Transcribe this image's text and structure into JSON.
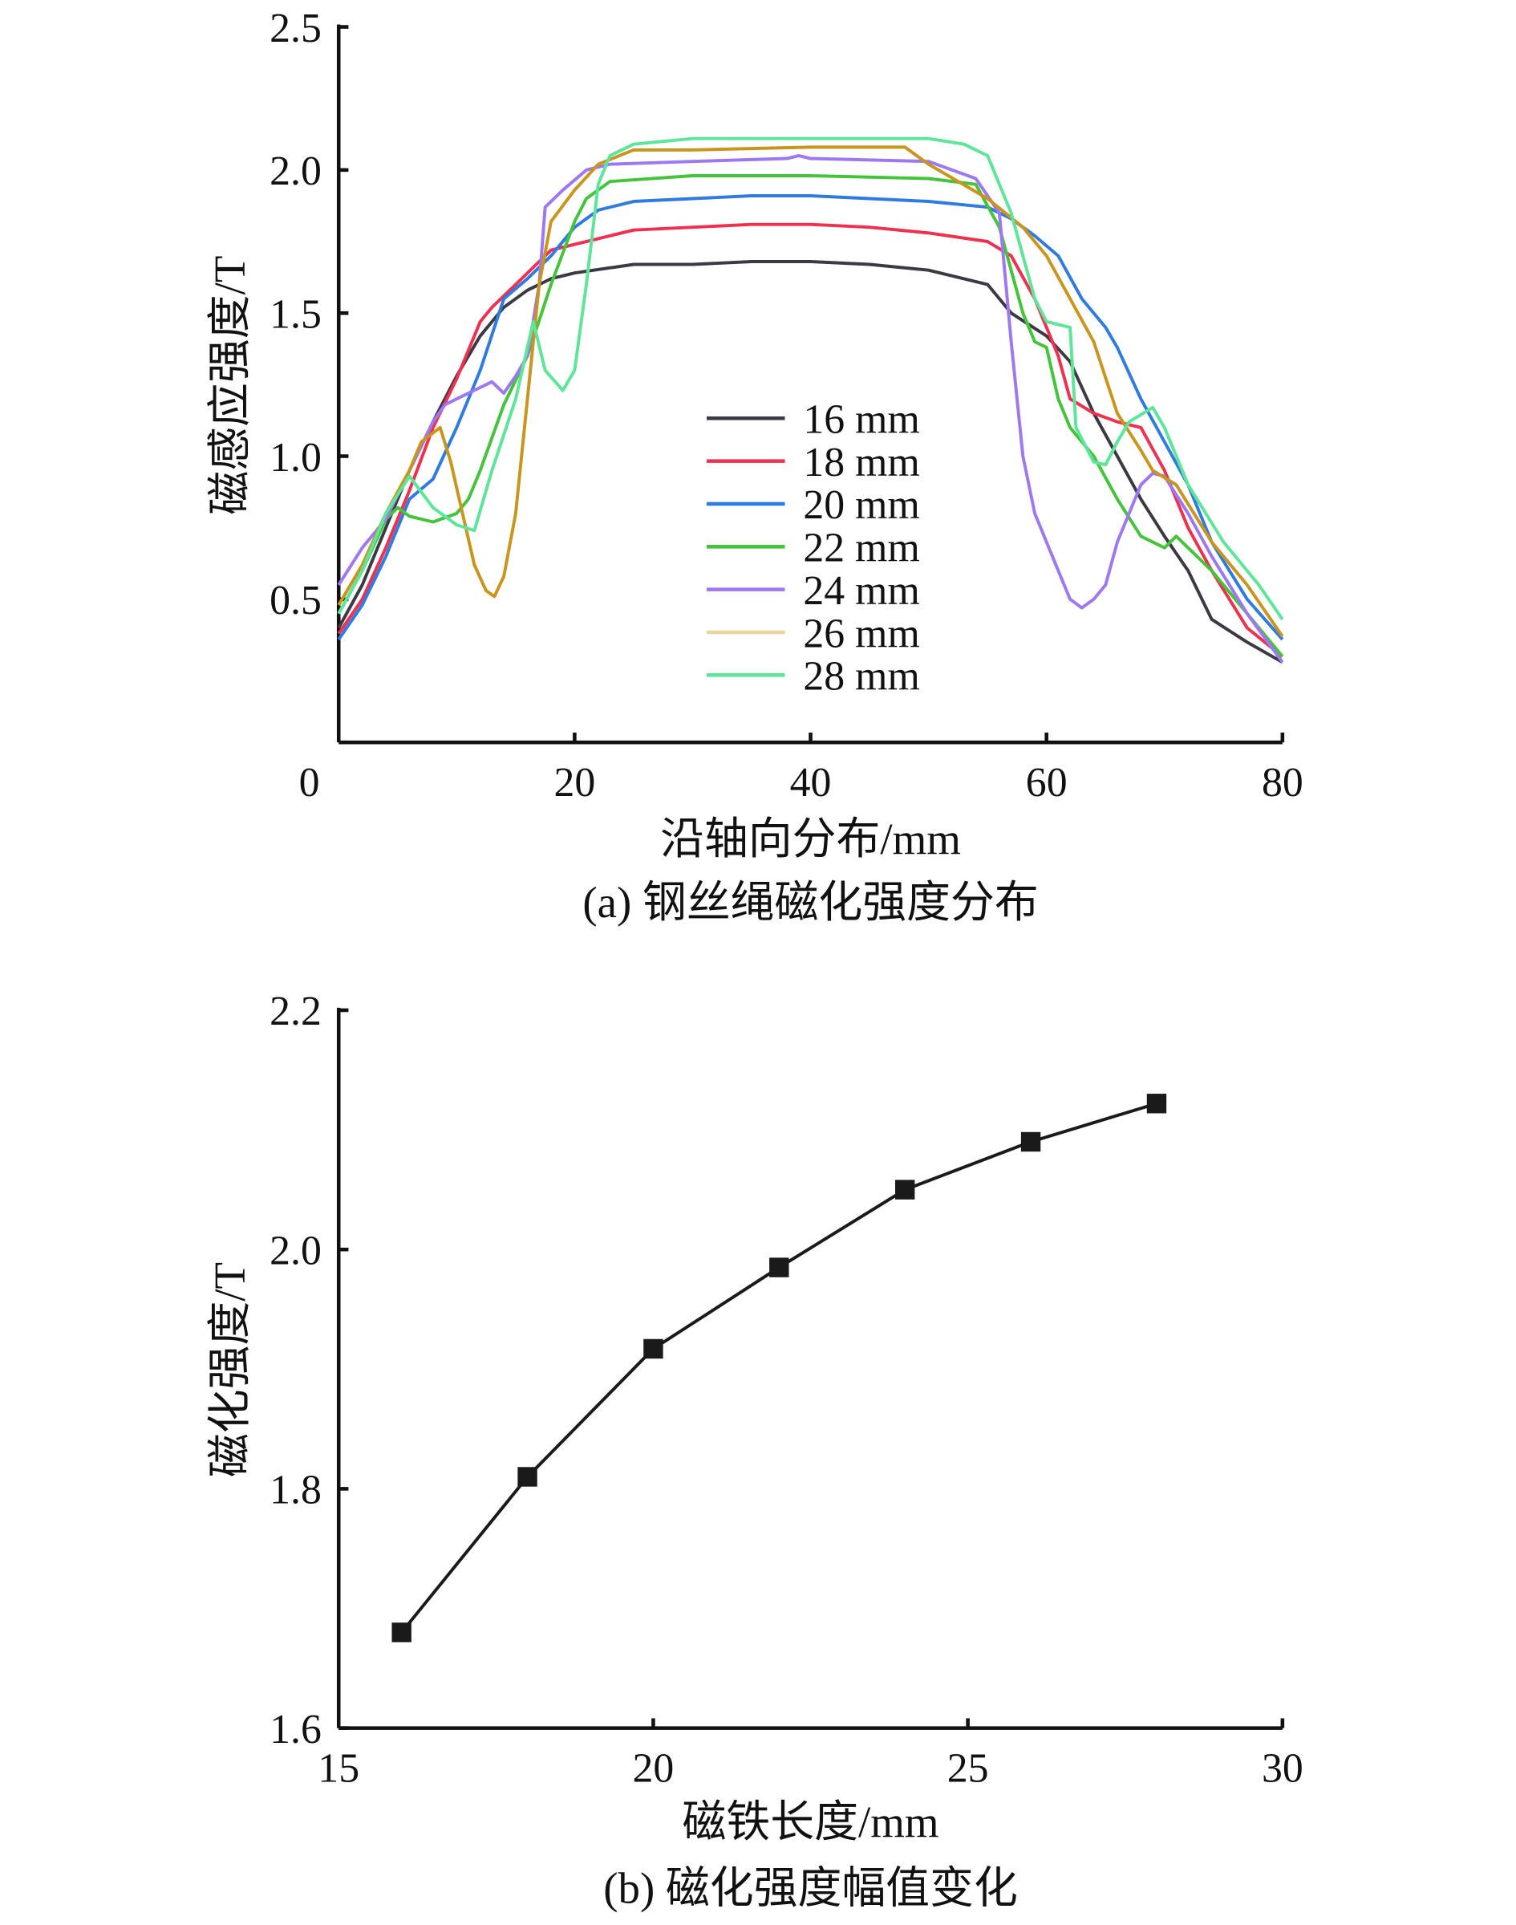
{
  "chart_data": [
    {
      "type": "line",
      "title": "(a) 钢丝绳磁化强度分布",
      "xlabel": "沿轴向分布/mm",
      "ylabel": "磁感应强度/T",
      "xlim": [
        0,
        80
      ],
      "ylim": [
        0,
        2.5
      ],
      "xticks": [
        "0",
        "20",
        "40",
        "60",
        "80"
      ],
      "yticks": [
        "0.5",
        "1.0",
        "1.5",
        "2.0",
        "2.5"
      ],
      "legend_position": "center",
      "grid": false,
      "series": [
        {
          "name": "16 mm",
          "color": "#3a3a44",
          "points": [
            [
              0,
              0.4
            ],
            [
              2,
              0.55
            ],
            [
              4,
              0.75
            ],
            [
              6,
              0.95
            ],
            [
              8,
              1.12
            ],
            [
              10,
              1.28
            ],
            [
              12,
              1.42
            ],
            [
              14,
              1.52
            ],
            [
              16,
              1.58
            ],
            [
              18,
              1.62
            ],
            [
              20,
              1.64
            ],
            [
              25,
              1.67
            ],
            [
              30,
              1.67
            ],
            [
              35,
              1.68
            ],
            [
              40,
              1.68
            ],
            [
              45,
              1.67
            ],
            [
              50,
              1.65
            ],
            [
              55,
              1.6
            ],
            [
              57,
              1.5
            ],
            [
              60,
              1.42
            ],
            [
              62,
              1.33
            ],
            [
              64,
              1.15
            ],
            [
              66,
              1.0
            ],
            [
              68,
              0.85
            ],
            [
              70,
              0.72
            ],
            [
              72,
              0.6
            ],
            [
              74,
              0.43
            ],
            [
              77,
              0.35
            ],
            [
              80,
              0.28
            ]
          ]
        },
        {
          "name": "18 mm",
          "color": "#f0304f",
          "points": [
            [
              0,
              0.38
            ],
            [
              2,
              0.5
            ],
            [
              4,
              0.68
            ],
            [
              6,
              0.88
            ],
            [
              8,
              1.1
            ],
            [
              10,
              1.27
            ],
            [
              12,
              1.47
            ],
            [
              13,
              1.52
            ],
            [
              15,
              1.6
            ],
            [
              17,
              1.68
            ],
            [
              18,
              1.72
            ],
            [
              20,
              1.74
            ],
            [
              25,
              1.79
            ],
            [
              30,
              1.8
            ],
            [
              35,
              1.81
            ],
            [
              40,
              1.81
            ],
            [
              45,
              1.8
            ],
            [
              50,
              1.78
            ],
            [
              55,
              1.75
            ],
            [
              57,
              1.7
            ],
            [
              59,
              1.55
            ],
            [
              61,
              1.35
            ],
            [
              62,
              1.2
            ],
            [
              64,
              1.15
            ],
            [
              66,
              1.12
            ],
            [
              68,
              1.1
            ],
            [
              70,
              0.95
            ],
            [
              72,
              0.75
            ],
            [
              74,
              0.6
            ],
            [
              77,
              0.4
            ],
            [
              80,
              0.3
            ]
          ]
        },
        {
          "name": "20 mm",
          "color": "#2f7be0",
          "points": [
            [
              0,
              0.36
            ],
            [
              2,
              0.48
            ],
            [
              4,
              0.65
            ],
            [
              6,
              0.85
            ],
            [
              8,
              0.92
            ],
            [
              10,
              1.1
            ],
            [
              12,
              1.3
            ],
            [
              14,
              1.55
            ],
            [
              16,
              1.62
            ],
            [
              18,
              1.7
            ],
            [
              20,
              1.8
            ],
            [
              22,
              1.86
            ],
            [
              25,
              1.89
            ],
            [
              30,
              1.9
            ],
            [
              35,
              1.91
            ],
            [
              40,
              1.91
            ],
            [
              45,
              1.9
            ],
            [
              50,
              1.89
            ],
            [
              55,
              1.87
            ],
            [
              57,
              1.83
            ],
            [
              59,
              1.77
            ],
            [
              61,
              1.7
            ],
            [
              63,
              1.55
            ],
            [
              65,
              1.45
            ],
            [
              66,
              1.38
            ],
            [
              68,
              1.2
            ],
            [
              70,
              1.05
            ],
            [
              72,
              0.9
            ],
            [
              74,
              0.7
            ],
            [
              77,
              0.5
            ],
            [
              80,
              0.36
            ]
          ]
        },
        {
          "name": "22 mm",
          "color": "#44c43a",
          "points": [
            [
              0,
              0.45
            ],
            [
              2,
              0.6
            ],
            [
              4,
              0.78
            ],
            [
              5,
              0.82
            ],
            [
              6,
              0.79
            ],
            [
              8,
              0.77
            ],
            [
              10,
              0.8
            ],
            [
              11,
              0.85
            ],
            [
              12,
              0.95
            ],
            [
              14,
              1.18
            ],
            [
              16,
              1.35
            ],
            [
              18,
              1.6
            ],
            [
              20,
              1.82
            ],
            [
              21,
              1.9
            ],
            [
              23,
              1.96
            ],
            [
              30,
              1.98
            ],
            [
              40,
              1.98
            ],
            [
              50,
              1.97
            ],
            [
              54,
              1.95
            ],
            [
              56,
              1.8
            ],
            [
              58,
              1.5
            ],
            [
              59,
              1.4
            ],
            [
              60,
              1.38
            ],
            [
              61,
              1.2
            ],
            [
              62,
              1.1
            ],
            [
              64,
              1.0
            ],
            [
              66,
              0.85
            ],
            [
              68,
              0.72
            ],
            [
              70,
              0.68
            ],
            [
              71,
              0.72
            ],
            [
              74,
              0.6
            ],
            [
              77,
              0.45
            ],
            [
              80,
              0.3
            ]
          ]
        },
        {
          "name": "24 mm",
          "color": "#9d78f0",
          "points": [
            [
              0,
              0.55
            ],
            [
              2,
              0.68
            ],
            [
              4,
              0.78
            ],
            [
              6,
              0.95
            ],
            [
              8,
              1.12
            ],
            [
              9,
              1.18
            ],
            [
              10,
              1.2
            ],
            [
              11,
              1.22
            ],
            [
              13,
              1.26
            ],
            [
              14,
              1.22
            ],
            [
              15,
              1.28
            ],
            [
              16,
              1.35
            ],
            [
              17,
              1.6
            ],
            [
              17.5,
              1.87
            ],
            [
              19,
              1.93
            ],
            [
              21,
              2.0
            ],
            [
              23,
              2.02
            ],
            [
              30,
              2.03
            ],
            [
              38,
              2.04
            ],
            [
              39,
              2.05
            ],
            [
              40,
              2.04
            ],
            [
              50,
              2.03
            ],
            [
              54,
              1.97
            ],
            [
              56,
              1.85
            ],
            [
              57,
              1.4
            ],
            [
              58,
              1.0
            ],
            [
              59,
              0.8
            ],
            [
              61,
              0.6
            ],
            [
              62,
              0.5
            ],
            [
              63,
              0.47
            ],
            [
              64,
              0.5
            ],
            [
              65,
              0.55
            ],
            [
              66,
              0.7
            ],
            [
              68,
              0.9
            ],
            [
              69,
              0.94
            ],
            [
              70,
              0.93
            ],
            [
              72,
              0.8
            ],
            [
              74,
              0.65
            ],
            [
              77,
              0.45
            ],
            [
              80,
              0.28
            ]
          ]
        },
        {
          "name": "26 mm",
          "color": "#c8961e",
          "legend_color": "#ecd49a",
          "points": [
            [
              0,
              0.48
            ],
            [
              2,
              0.62
            ],
            [
              4,
              0.8
            ],
            [
              6,
              0.95
            ],
            [
              7,
              1.05
            ],
            [
              8.6,
              1.1
            ],
            [
              9.5,
              0.98
            ],
            [
              10.5,
              0.8
            ],
            [
              11.5,
              0.62
            ],
            [
              12.5,
              0.53
            ],
            [
              13.2,
              0.51
            ],
            [
              14,
              0.58
            ],
            [
              15,
              0.8
            ],
            [
              16,
              1.2
            ],
            [
              17,
              1.6
            ],
            [
              18,
              1.82
            ],
            [
              20,
              1.93
            ],
            [
              22,
              2.02
            ],
            [
              25,
              2.07
            ],
            [
              30,
              2.07
            ],
            [
              40,
              2.08
            ],
            [
              48,
              2.08
            ],
            [
              50,
              2.02
            ],
            [
              55,
              1.9
            ],
            [
              58,
              1.8
            ],
            [
              60,
              1.7
            ],
            [
              62,
              1.55
            ],
            [
              64,
              1.4
            ],
            [
              66,
              1.15
            ],
            [
              68,
              1.02
            ],
            [
              69,
              0.95
            ],
            [
              71,
              0.9
            ],
            [
              74,
              0.7
            ],
            [
              77,
              0.55
            ],
            [
              80,
              0.37
            ]
          ]
        },
        {
          "name": "28 mm",
          "color": "#5ee59a",
          "points": [
            [
              0,
              0.45
            ],
            [
              2,
              0.6
            ],
            [
              4,
              0.8
            ],
            [
              6,
              0.93
            ],
            [
              8,
              0.82
            ],
            [
              10,
              0.76
            ],
            [
              11.5,
              0.74
            ],
            [
              13,
              0.95
            ],
            [
              15,
              1.2
            ],
            [
              16.5,
              1.47
            ],
            [
              17.5,
              1.3
            ],
            [
              19,
              1.23
            ],
            [
              20,
              1.3
            ],
            [
              21,
              1.6
            ],
            [
              22,
              1.95
            ],
            [
              23,
              2.05
            ],
            [
              25,
              2.09
            ],
            [
              30,
              2.11
            ],
            [
              40,
              2.11
            ],
            [
              50,
              2.11
            ],
            [
              53,
              2.09
            ],
            [
              55,
              2.05
            ],
            [
              57,
              1.85
            ],
            [
              58,
              1.7
            ],
            [
              59,
              1.55
            ],
            [
              60,
              1.47
            ],
            [
              62,
              1.45
            ],
            [
              62.5,
              1.1
            ],
            [
              64,
              0.98
            ],
            [
              65,
              0.97
            ],
            [
              66,
              1.05
            ],
            [
              67,
              1.12
            ],
            [
              69,
              1.17
            ],
            [
              70,
              1.1
            ],
            [
              72,
              0.9
            ],
            [
              75,
              0.7
            ],
            [
              78,
              0.55
            ],
            [
              80,
              0.43
            ]
          ]
        }
      ]
    },
    {
      "type": "line",
      "title": "(b) 磁化强度幅值变化",
      "xlabel": "磁铁长度/mm",
      "ylabel": "磁化强度/T",
      "xlim": [
        15,
        30
      ],
      "ylim": [
        1.6,
        2.2
      ],
      "xticks": [
        "15",
        "20",
        "25",
        "30"
      ],
      "yticks": [
        "1.6",
        "1.8",
        "2.0",
        "2.2"
      ],
      "grid": false,
      "marker": "square",
      "series": [
        {
          "name": "磁化强度",
          "color": "#1a1a1a",
          "x": [
            16,
            18,
            20,
            22,
            24,
            26,
            28
          ],
          "y": [
            1.68,
            1.81,
            1.917,
            1.985,
            2.05,
            2.09,
            2.122
          ]
        }
      ]
    }
  ]
}
